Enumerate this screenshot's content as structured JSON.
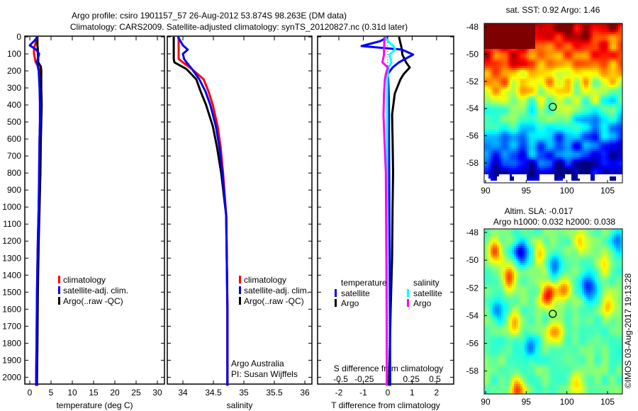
{
  "title": {
    "line1": "Argo profile: csiro 1901157_57 26-Aug-2012 53.874S 98.263E (DM data)",
    "line2": "Climatology: CARS2009. Satellite-adjusted climatology: synTS_20120827.nc (0.31d later)"
  },
  "profile": {
    "lat": -53.874,
    "lon": 98.263
  },
  "colors": {
    "climatology": "#ff0000",
    "satellite": "#0000ff",
    "argo": "#000000",
    "sal_satellite": "#00ffff",
    "sal_argo": "#ff00ff"
  },
  "depth_ticks": [
    "0",
    "100",
    "200",
    "300",
    "400",
    "500",
    "600",
    "700",
    "800",
    "900",
    "1000",
    "1100",
    "1200",
    "1300",
    "1400",
    "1500",
    "1600",
    "1700",
    "1800",
    "1900",
    "2000"
  ],
  "chart_data": [
    {
      "type": "line",
      "id": "temperature",
      "xlabel": "temperature (deg C)",
      "ylabel": "depth",
      "xlim": [
        -1.17,
        31.67
      ],
      "ylim": [
        0,
        2040
      ],
      "xticks": [
        "0",
        "5",
        "10",
        "15",
        "20",
        "25",
        "30"
      ],
      "depth": [
        0,
        25,
        50,
        75,
        100,
        150,
        175,
        200,
        300,
        400,
        500,
        600,
        800,
        1000,
        1200,
        1500,
        1800,
        2000,
        2050
      ],
      "series": [
        {
          "name": "climatology",
          "color": "#ff0000",
          "values": [
            1.6,
            1.5,
            1.2,
            1.0,
            1.0,
            1.4,
            2.0,
            2.3,
            2.4,
            2.4,
            2.4,
            2.3,
            2.2,
            2.1,
            1.9,
            1.7,
            1.6,
            1.5,
            1.5
          ]
        },
        {
          "name": "Argo(..raw -QC)",
          "color": "#000000",
          "values": [
            1.8,
            1.8,
            1.8,
            1.9,
            1.9,
            2.0,
            2.6,
            2.7,
            2.7,
            2.8,
            2.7,
            2.6,
            2.5,
            2.3,
            2.1,
            1.9,
            1.8,
            1.7,
            1.7
          ]
        },
        {
          "name": "satellite-adj. clim.",
          "color": "#0000ff",
          "values": [
            1.9,
            1.0,
            0.0,
            1.5,
            2.2,
            1.7,
            1.9,
            2.1,
            2.3,
            2.4,
            2.4,
            2.3,
            2.2,
            2.1,
            1.9,
            1.7,
            1.6,
            1.5,
            1.5
          ]
        }
      ],
      "legend": [
        "climatology",
        "satellite-adj. clim.",
        "Argo(..raw -QC)"
      ],
      "legend_colors": [
        "#ff0000",
        "#0000ff",
        "#000000"
      ]
    },
    {
      "type": "line",
      "id": "salinity",
      "xlabel": "salinity",
      "ylabel": "depth",
      "xlim": [
        33.744,
        36.116
      ],
      "ylim": [
        0,
        2040
      ],
      "xticks": [
        "34",
        "34.5",
        "35",
        "35.5",
        "36"
      ],
      "depth": [
        0,
        50,
        75,
        100,
        130,
        150,
        190,
        250,
        320,
        400,
        525,
        650,
        805,
        1050,
        1300,
        1600,
        2000,
        2050
      ],
      "series": [
        {
          "name": "climatology",
          "color": "#ff0000",
          "values": [
            33.93,
            33.93,
            33.93,
            33.93,
            33.93,
            34.0,
            34.15,
            34.34,
            34.42,
            34.49,
            34.57,
            34.62,
            34.66,
            34.71,
            34.72,
            34.73,
            34.73,
            34.73
          ]
        },
        {
          "name": "Argo(..raw -QC)",
          "color": "#000000",
          "values": [
            33.85,
            33.85,
            33.85,
            33.85,
            33.85,
            33.86,
            34.06,
            34.22,
            34.29,
            34.38,
            34.49,
            34.56,
            34.63,
            34.71,
            34.72,
            34.73,
            34.73,
            34.73
          ]
        },
        {
          "name": "satellite-adj. clim.",
          "color": "#0000ff",
          "values": [
            33.92,
            34.0,
            34.08,
            34.0,
            34.02,
            34.06,
            34.15,
            34.27,
            34.37,
            34.45,
            34.54,
            34.6,
            34.65,
            34.71,
            34.72,
            34.73,
            34.73,
            34.73
          ]
        }
      ],
      "legend": [
        "climatology",
        "satellite-adj. clim.",
        "Argo(..raw -QC)"
      ],
      "legend_colors": [
        "#ff0000",
        "#0000ff",
        "#000000"
      ],
      "annotation": [
        "Argo Australia",
        "PI: Susan Wijffels"
      ]
    },
    {
      "type": "line",
      "id": "difference",
      "xlabel": "T difference from climatology",
      "x2label": "S difference from climatology",
      "xlim": [
        -2.87,
        2.7
      ],
      "x2lim": [
        -0.745,
        0.7
      ],
      "ylim": [
        0,
        2040
      ],
      "xticks": [
        "-2",
        "-1",
        "0",
        "1",
        "2"
      ],
      "x2ticks": [
        "-0.5",
        "-0.25",
        "0",
        "0.25",
        "0.5"
      ],
      "depth": [
        0,
        25,
        54,
        75,
        104,
        150,
        180,
        220,
        250,
        333,
        458,
        600,
        800,
        1000,
        1300,
        1600,
        2000,
        2050
      ],
      "series": [
        {
          "name": "temperature Argo",
          "axis": "T",
          "color": "#000000",
          "values": [
            0.46,
            0.5,
            0.55,
            0.58,
            0.6,
            0.75,
            0.9,
            0.65,
            0.52,
            0.29,
            0.18,
            0.2,
            0.22,
            0.2,
            0.18,
            0.12,
            0.06,
            0.06
          ]
        },
        {
          "name": "temperature satellite",
          "axis": "T",
          "color": "#0000ff",
          "values": [
            0.0,
            -0.3,
            -1.07,
            0.58,
            1.04,
            0.46,
            0.2,
            0.0,
            0.02,
            0.04,
            0.05,
            0.05,
            0.06,
            0.07,
            0.08,
            0.09,
            0.1,
            0.1
          ]
        },
        {
          "name": "salinity satellite",
          "axis": "S",
          "color": "#00ffff",
          "values": [
            -0.027,
            0.0,
            0.06,
            0.08,
            0.02,
            0.04,
            0.01,
            0.0,
            -0.003,
            -0.005,
            -0.005,
            -0.006,
            -0.006,
            -0.007,
            -0.008,
            -0.009,
            -0.01,
            -0.01
          ]
        },
        {
          "name": "salinity Argo",
          "axis": "S",
          "color": "#ff00ff",
          "values": [
            -0.034,
            -0.036,
            -0.038,
            -0.04,
            -0.04,
            -0.057,
            0.0,
            -0.02,
            -0.03,
            -0.04,
            -0.045,
            -0.035,
            -0.02,
            -0.018,
            -0.015,
            -0.012,
            -0.01,
            -0.01
          ]
        }
      ],
      "legend": {
        "temperature_title": "temperature",
        "salinity_title": "salinity",
        "items": [
          {
            "label": "satellite",
            "color": "#0000ff"
          },
          {
            "label": "Argo",
            "color": "#000000"
          },
          {
            "label": "satellite",
            "color": "#00ffff"
          },
          {
            "label": "Argo",
            "color": "#ff00ff"
          }
        ]
      }
    }
  ],
  "maps": {
    "sst": {
      "title": "sat. SST: 0.92 Argo: 1.46",
      "xticks": [
        "90",
        "95",
        "100",
        "105"
      ],
      "yticks": [
        "-48",
        "-50",
        "-52",
        "-54",
        "-56",
        "-58"
      ],
      "lon_range": [
        89.83,
        106.83
      ],
      "lat_range": [
        -47.74,
        -59.46
      ]
    },
    "sla": {
      "title1": "Altim. SLA: -0.017",
      "title2": "Argo h1000: 0.032 h2000: 0.038",
      "xticks": [
        "90",
        "95",
        "100",
        "105"
      ],
      "yticks": [
        "-48",
        "-50",
        "-52",
        "-54",
        "-56",
        "-58"
      ],
      "lon_range": [
        89.83,
        106.83
      ],
      "lat_range": [
        -47.74,
        -59.66
      ]
    }
  },
  "copyright": "©IMOS 03-Aug-2017 19:13:28"
}
